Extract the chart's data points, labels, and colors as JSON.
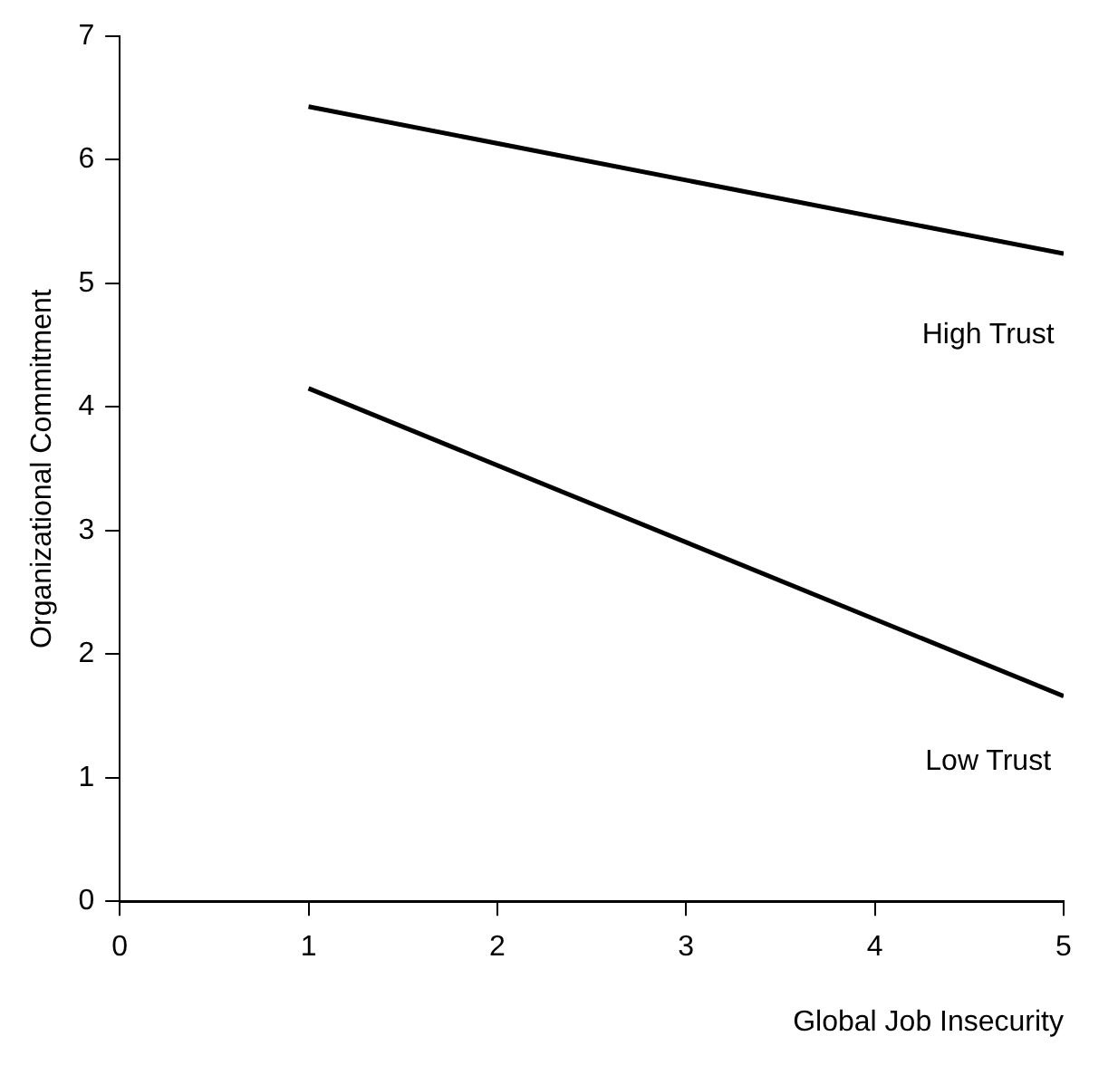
{
  "chart_data": {
    "type": "line",
    "xlabel": "Global Job Insecurity",
    "ylabel": "Organizational Commitment",
    "xlim": [
      0,
      5
    ],
    "xticks": [
      0,
      1,
      2,
      3,
      4,
      5
    ],
    "ylim": [
      0,
      7
    ],
    "yticks": [
      0,
      1,
      2,
      3,
      4,
      5,
      6,
      7
    ],
    "grid": false,
    "legend": false,
    "marker": "none",
    "line_style": "solid",
    "x": [
      1,
      5
    ],
    "series": [
      {
        "name": "High Trust",
        "color": "#000000",
        "values": [
          6.43,
          5.24
        ]
      },
      {
        "name": "Low Trust",
        "color": "#000000",
        "values": [
          4.15,
          1.66
        ]
      }
    ]
  }
}
